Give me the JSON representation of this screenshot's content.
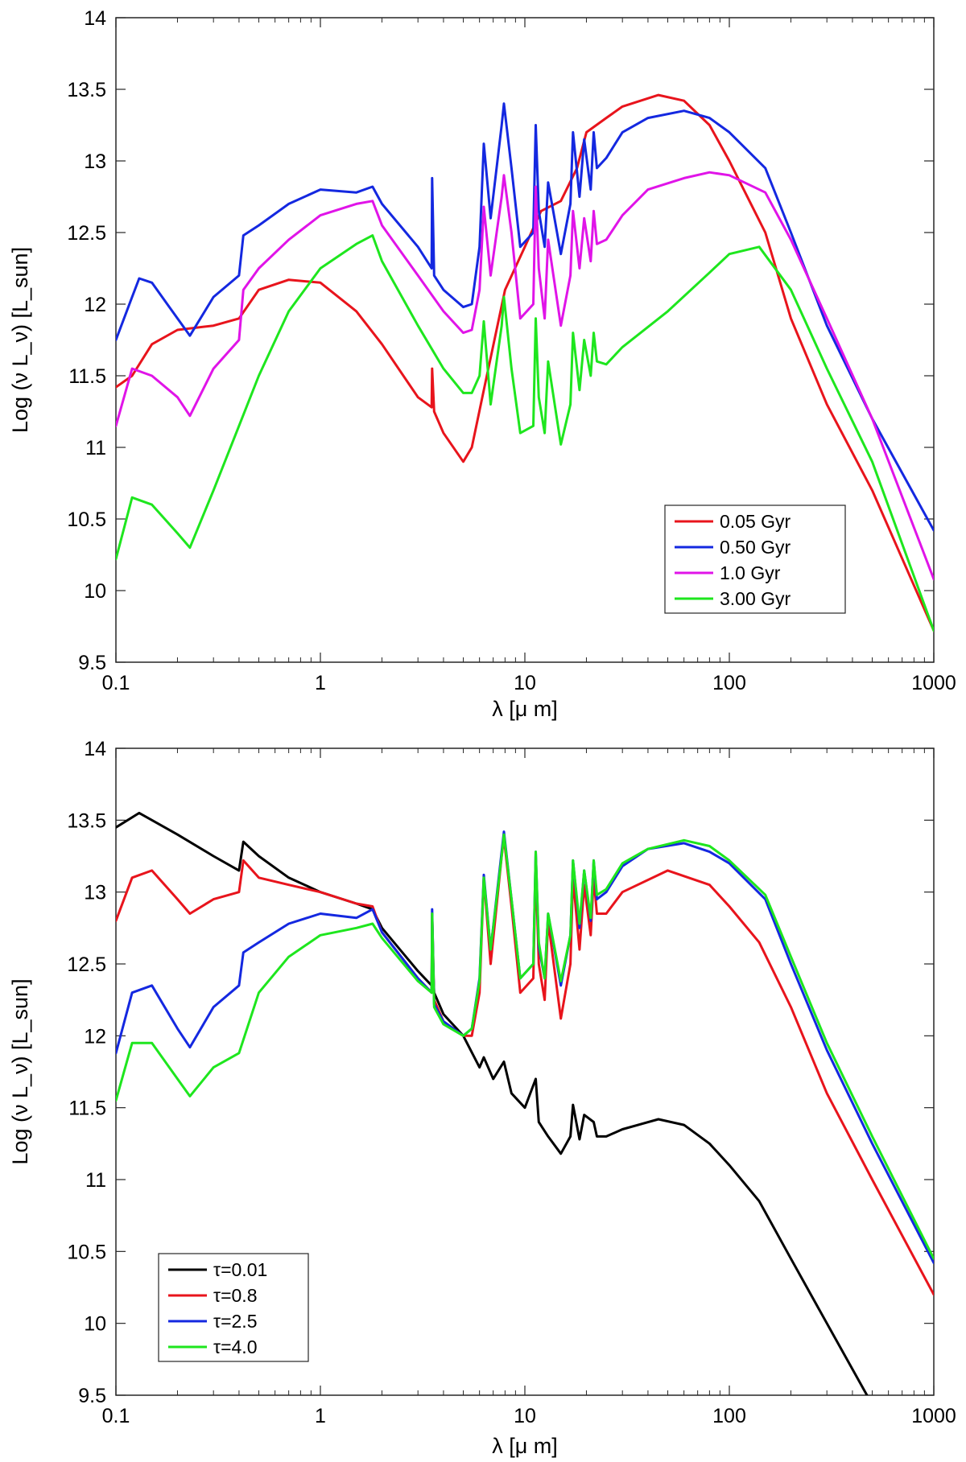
{
  "chart_data": [
    {
      "type": "line",
      "title": "",
      "xlabel": "λ  [μ m]",
      "ylabel": "Log (ν L_ν) [L_sun]",
      "ylabel_parts": {
        "main": "Log (ν L",
        "sub_nu": "ν",
        "close": ") [L",
        "sub_sun": "sun",
        "end": "]"
      },
      "xlabel_parts": {
        "lambda": "λ",
        "unit": "[μ m]"
      },
      "xscale": "log",
      "xlim": [
        0.1,
        1000
      ],
      "ylim": [
        9.5,
        14
      ],
      "xticks": [
        0.1,
        1,
        10,
        100,
        1000
      ],
      "xtick_labels": [
        "0.1",
        "1",
        "10",
        "100",
        "1000"
      ],
      "yticks": [
        9.5,
        10,
        10.5,
        11,
        11.5,
        12,
        12.5,
        13,
        13.5,
        14
      ],
      "ytick_labels": [
        "9.5",
        "10",
        "10.5",
        "11",
        "11.5",
        "12",
        "12.5",
        "13",
        "13.5",
        "14"
      ],
      "legend_position": "lower-right",
      "series": [
        {
          "name": "0.05 Gyr",
          "color": "#e8141c",
          "x": [
            0.1,
            0.12,
            0.15,
            0.2,
            0.3,
            0.4,
            0.5,
            0.7,
            1.0,
            1.5,
            2.0,
            3.0,
            3.5,
            3.52,
            3.6,
            4.0,
            5.0,
            5.5,
            6.3,
            8.0,
            10,
            12,
            15,
            18,
            20,
            25,
            30,
            45,
            60,
            80,
            100,
            150,
            200,
            300,
            500,
            1000
          ],
          "y": [
            11.42,
            11.5,
            11.72,
            11.82,
            11.85,
            11.9,
            12.1,
            12.17,
            12.15,
            11.95,
            11.72,
            11.35,
            11.28,
            11.55,
            11.25,
            11.1,
            10.9,
            11.0,
            11.4,
            12.1,
            12.4,
            12.65,
            12.72,
            12.95,
            13.2,
            13.3,
            13.38,
            13.46,
            13.42,
            13.25,
            13.0,
            12.5,
            11.9,
            11.3,
            10.7,
            9.72
          ]
        },
        {
          "name": "0.50 Gyr",
          "color": "#1428e0",
          "x": [
            0.1,
            0.12,
            0.13,
            0.15,
            0.2,
            0.23,
            0.3,
            0.4,
            0.42,
            0.5,
            0.7,
            1.0,
            1.5,
            1.8,
            2.0,
            3.0,
            3.5,
            3.52,
            3.6,
            4.0,
            5.0,
            5.5,
            6.0,
            6.3,
            6.8,
            7.7,
            7.9,
            8.6,
            9.5,
            11.0,
            11.3,
            11.7,
            12.5,
            13.0,
            15.0,
            16.7,
            17.2,
            18.5,
            19.5,
            21.0,
            21.7,
            22.5,
            25,
            30,
            40,
            60,
            80,
            100,
            150,
            200,
            300,
            500,
            1000
          ],
          "y": [
            11.75,
            12.05,
            12.18,
            12.15,
            11.9,
            11.78,
            12.05,
            12.2,
            12.48,
            12.55,
            12.7,
            12.8,
            12.78,
            12.82,
            12.7,
            12.4,
            12.25,
            12.88,
            12.2,
            12.1,
            11.98,
            12.0,
            12.4,
            13.12,
            12.6,
            13.25,
            13.4,
            12.95,
            12.4,
            12.5,
            13.25,
            12.65,
            12.4,
            12.85,
            12.35,
            12.7,
            13.2,
            12.75,
            13.15,
            12.8,
            13.2,
            12.95,
            13.02,
            13.2,
            13.3,
            13.35,
            13.3,
            13.2,
            12.95,
            12.5,
            11.85,
            11.2,
            10.42
          ]
        },
        {
          "name": "1.0 Gyr",
          "color": "#e014e8",
          "x": [
            0.1,
            0.12,
            0.15,
            0.2,
            0.23,
            0.3,
            0.4,
            0.42,
            0.5,
            0.7,
            1.0,
            1.5,
            1.8,
            2.0,
            3.0,
            4.0,
            5.0,
            5.5,
            6.0,
            6.3,
            6.8,
            7.7,
            7.9,
            8.6,
            9.5,
            11.0,
            11.3,
            11.7,
            12.5,
            13.0,
            15.0,
            16.7,
            17.2,
            18.5,
            19.5,
            21.0,
            21.7,
            22.5,
            25,
            30,
            40,
            60,
            80,
            100,
            150,
            200,
            300,
            500,
            1000
          ],
          "y": [
            11.15,
            11.55,
            11.5,
            11.35,
            11.22,
            11.55,
            11.75,
            12.1,
            12.25,
            12.45,
            12.62,
            12.7,
            12.72,
            12.55,
            12.2,
            11.95,
            11.8,
            11.82,
            12.1,
            12.68,
            12.2,
            12.75,
            12.9,
            12.5,
            11.9,
            12.0,
            12.82,
            12.25,
            11.9,
            12.45,
            11.85,
            12.2,
            12.65,
            12.25,
            12.6,
            12.3,
            12.65,
            12.42,
            12.45,
            12.62,
            12.8,
            12.88,
            12.92,
            12.9,
            12.78,
            12.45,
            11.9,
            11.2,
            10.08
          ]
        },
        {
          "name": "3.00 Gyr",
          "color": "#1ee61e",
          "x": [
            0.1,
            0.12,
            0.15,
            0.2,
            0.23,
            0.3,
            0.4,
            0.5,
            0.7,
            1.0,
            1.5,
            1.8,
            2.0,
            3.0,
            4.0,
            5.0,
            5.5,
            6.0,
            6.3,
            6.8,
            7.7,
            7.9,
            8.6,
            9.5,
            11.0,
            11.3,
            11.7,
            12.5,
            13.0,
            15.0,
            16.7,
            17.2,
            18.5,
            19.5,
            21.0,
            21.7,
            22.5,
            25,
            30,
            50,
            80,
            100,
            140,
            200,
            300,
            500,
            1000
          ],
          "y": [
            10.22,
            10.65,
            10.6,
            10.4,
            10.3,
            10.7,
            11.15,
            11.5,
            11.95,
            12.25,
            12.42,
            12.48,
            12.3,
            11.85,
            11.55,
            11.38,
            11.38,
            11.5,
            11.88,
            11.3,
            11.85,
            12.05,
            11.55,
            11.1,
            11.15,
            11.9,
            11.35,
            11.1,
            11.6,
            11.02,
            11.3,
            11.8,
            11.4,
            11.75,
            11.5,
            11.8,
            11.6,
            11.58,
            11.7,
            11.95,
            12.22,
            12.35,
            12.4,
            12.1,
            11.55,
            10.9,
            9.72
          ]
        }
      ]
    },
    {
      "type": "line",
      "title": "",
      "xlabel": "λ  [μ m]",
      "ylabel": "Log (ν L_ν) [L_sun]",
      "xscale": "log",
      "xlim": [
        0.1,
        1000
      ],
      "ylim": [
        9.5,
        14
      ],
      "xticks": [
        0.1,
        1,
        10,
        100,
        1000
      ],
      "xtick_labels": [
        "0.1",
        "1",
        "10",
        "100",
        "1000"
      ],
      "yticks": [
        9.5,
        10,
        10.5,
        11,
        11.5,
        12,
        12.5,
        13,
        13.5,
        14
      ],
      "ytick_labels": [
        "9.5",
        "10",
        "10.5",
        "11",
        "11.5",
        "12",
        "12.5",
        "13",
        "13.5",
        "14"
      ],
      "legend_position": "lower-left",
      "series": [
        {
          "name": "τ=0.01",
          "color": "#000000",
          "x": [
            0.1,
            0.13,
            0.2,
            0.3,
            0.4,
            0.42,
            0.5,
            0.7,
            1.0,
            1.5,
            1.8,
            2.0,
            3.0,
            3.5,
            3.52,
            3.6,
            4.0,
            5.0,
            6.0,
            6.3,
            7.0,
            7.9,
            8.6,
            10,
            11.3,
            11.7,
            13,
            15,
            16.7,
            17.2,
            18.5,
            19.5,
            21.7,
            22.5,
            25,
            30,
            45,
            60,
            80,
            100,
            140,
            200,
            300,
            480
          ],
          "y": [
            13.45,
            13.55,
            13.4,
            13.25,
            13.15,
            13.35,
            13.25,
            13.1,
            13.0,
            12.92,
            12.88,
            12.75,
            12.45,
            12.35,
            12.6,
            12.3,
            12.15,
            12.0,
            11.78,
            11.85,
            11.7,
            11.82,
            11.6,
            11.5,
            11.7,
            11.4,
            11.3,
            11.18,
            11.3,
            11.52,
            11.28,
            11.45,
            11.4,
            11.3,
            11.3,
            11.35,
            11.42,
            11.38,
            11.25,
            11.1,
            10.85,
            10.45,
            10.0,
            9.48
          ]
        },
        {
          "name": "τ=0.8",
          "color": "#e8141c",
          "x": [
            0.1,
            0.12,
            0.15,
            0.2,
            0.23,
            0.3,
            0.4,
            0.42,
            0.5,
            0.7,
            1.0,
            1.5,
            1.8,
            2.0,
            3.0,
            3.5,
            3.52,
            3.6,
            4.0,
            5.0,
            5.5,
            6.0,
            6.3,
            6.8,
            7.7,
            7.9,
            8.6,
            9.5,
            11.0,
            11.3,
            11.7,
            12.5,
            13.0,
            15.0,
            16.7,
            17.2,
            18.5,
            19.5,
            21.0,
            21.7,
            22.5,
            25,
            30,
            50,
            80,
            100,
            140,
            200,
            300,
            500,
            1000
          ],
          "y": [
            12.8,
            13.1,
            13.15,
            12.95,
            12.85,
            12.95,
            13.0,
            13.22,
            13.1,
            13.05,
            13.0,
            12.92,
            12.9,
            12.72,
            12.4,
            12.3,
            12.85,
            12.25,
            12.1,
            12.0,
            12.0,
            12.3,
            13.1,
            12.5,
            13.25,
            13.38,
            12.9,
            12.3,
            12.4,
            13.2,
            12.5,
            12.25,
            12.8,
            12.12,
            12.5,
            13.1,
            12.6,
            13.05,
            12.7,
            13.1,
            12.85,
            12.85,
            13.0,
            13.15,
            13.05,
            12.9,
            12.65,
            12.2,
            11.6,
            11.0,
            10.2
          ]
        },
        {
          "name": "τ=2.5",
          "color": "#1428e0",
          "x": [
            0.1,
            0.12,
            0.15,
            0.2,
            0.23,
            0.3,
            0.4,
            0.42,
            0.5,
            0.7,
            1.0,
            1.5,
            1.8,
            2.0,
            3.0,
            3.5,
            3.52,
            3.6,
            4.0,
            5.0,
            5.5,
            6.0,
            6.3,
            6.8,
            7.7,
            7.9,
            8.6,
            9.5,
            11.0,
            11.3,
            11.7,
            12.5,
            13.0,
            15.0,
            16.7,
            17.2,
            18.5,
            19.5,
            21.0,
            21.7,
            22.5,
            25,
            30,
            40,
            60,
            80,
            100,
            150,
            200,
            300,
            500,
            1000
          ],
          "y": [
            11.88,
            12.3,
            12.35,
            12.05,
            11.92,
            12.2,
            12.35,
            12.58,
            12.65,
            12.78,
            12.85,
            12.82,
            12.88,
            12.72,
            12.4,
            12.3,
            12.88,
            12.22,
            12.1,
            12.0,
            12.05,
            12.4,
            13.12,
            12.6,
            13.28,
            13.42,
            12.95,
            12.4,
            12.5,
            13.28,
            12.62,
            12.4,
            12.85,
            12.35,
            12.7,
            13.22,
            12.75,
            13.15,
            12.8,
            13.22,
            12.95,
            13.0,
            13.18,
            13.3,
            13.34,
            13.28,
            13.2,
            12.95,
            12.5,
            11.9,
            11.25,
            10.42
          ]
        },
        {
          "name": "τ=4.0",
          "color": "#1ee61e",
          "x": [
            0.1,
            0.12,
            0.15,
            0.2,
            0.23,
            0.3,
            0.4,
            0.5,
            0.7,
            1.0,
            1.5,
            1.8,
            2.0,
            3.0,
            3.5,
            3.52,
            3.6,
            4.0,
            5.0,
            5.5,
            6.0,
            6.3,
            6.8,
            7.7,
            7.9,
            8.6,
            9.5,
            11.0,
            11.3,
            11.7,
            12.5,
            13.0,
            15.0,
            16.7,
            17.2,
            18.5,
            19.5,
            21.0,
            21.7,
            22.5,
            25,
            30,
            40,
            60,
            80,
            100,
            150,
            200,
            300,
            500,
            1000
          ],
          "y": [
            11.55,
            11.95,
            11.95,
            11.7,
            11.58,
            11.78,
            11.88,
            12.3,
            12.55,
            12.7,
            12.75,
            12.78,
            12.68,
            12.38,
            12.3,
            12.85,
            12.2,
            12.08,
            12.0,
            12.05,
            12.38,
            13.1,
            12.6,
            13.25,
            13.4,
            12.95,
            12.4,
            12.5,
            13.28,
            12.65,
            12.4,
            12.85,
            12.38,
            12.7,
            13.22,
            12.78,
            13.15,
            12.82,
            13.22,
            12.98,
            13.02,
            13.2,
            13.3,
            13.36,
            13.32,
            13.22,
            12.98,
            12.55,
            11.95,
            11.3,
            10.45
          ]
        }
      ]
    }
  ]
}
